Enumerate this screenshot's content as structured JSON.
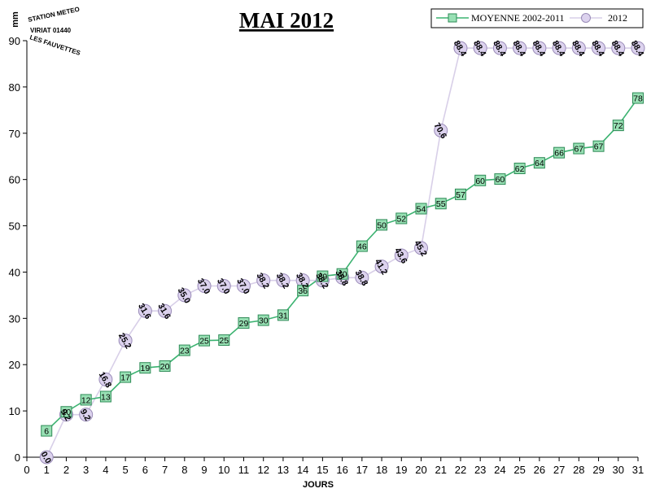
{
  "chart_data": {
    "type": "line",
    "title": "MAI 2012",
    "xlabel": "JOURS",
    "ylabel": "mm",
    "xlim": [
      0,
      31
    ],
    "ylim": [
      0,
      90
    ],
    "xticks": [
      0,
      1,
      2,
      3,
      4,
      5,
      6,
      7,
      8,
      9,
      10,
      11,
      12,
      13,
      14,
      15,
      16,
      17,
      18,
      19,
      20,
      21,
      22,
      23,
      24,
      25,
      26,
      27,
      28,
      29,
      30,
      31
    ],
    "yticks": [
      0,
      10,
      20,
      30,
      40,
      50,
      60,
      70,
      80,
      90
    ],
    "grid": false,
    "legend_position": "top-right",
    "series": [
      {
        "name": "MOYENNE 2002-2011",
        "color": "#3cb371",
        "marker": "square",
        "x": [
          1,
          2,
          3,
          4,
          5,
          6,
          7,
          8,
          9,
          10,
          11,
          12,
          13,
          14,
          15,
          16,
          17,
          18,
          19,
          20,
          21,
          22,
          23,
          24,
          25,
          26,
          27,
          28,
          29,
          30,
          31
        ],
        "values": [
          5.7,
          9.8,
          12.4,
          13.1,
          17.3,
          19.3,
          19.7,
          23.1,
          25.2,
          25.3,
          29.0,
          29.6,
          30.7,
          36.0,
          39.1,
          39.6,
          45.6,
          50.2,
          51.6,
          53.7,
          54.8,
          56.8,
          59.8,
          60.1,
          62.4,
          63.6,
          65.8,
          66.7,
          67.2,
          71.7,
          77.6
        ],
        "labels": [
          "6",
          "10",
          "12",
          "13",
          "17",
          "19",
          "20",
          "23",
          "25",
          "25",
          "29",
          "30",
          "31",
          "36",
          "39",
          "40",
          "46",
          "50",
          "52",
          "54",
          "55",
          "57",
          "60",
          "60",
          "62",
          "64",
          "66",
          "67",
          "67",
          "72",
          "78"
        ]
      },
      {
        "name": "2012",
        "color": "#d8cfe8",
        "marker": "circle",
        "x": [
          1,
          2,
          3,
          4,
          5,
          6,
          7,
          8,
          9,
          10,
          11,
          12,
          13,
          14,
          15,
          16,
          17,
          18,
          19,
          20,
          21,
          22,
          23,
          24,
          25,
          26,
          27,
          28,
          29,
          30,
          31
        ],
        "values": [
          0.0,
          9.2,
          9.2,
          16.8,
          25.2,
          31.6,
          31.6,
          35.0,
          37.0,
          37.0,
          37.0,
          38.2,
          38.2,
          38.2,
          38.2,
          38.8,
          38.8,
          41.2,
          43.6,
          45.2,
          70.6,
          88.4,
          88.4,
          88.4,
          88.4,
          88.4,
          88.4,
          88.4,
          88.4,
          88.4,
          88.4
        ],
        "labels": [
          "0.0",
          "9.2",
          "9.2",
          "16.8",
          "25.2",
          "31.6",
          "31.6",
          "35.0",
          "37.0",
          "37.0",
          "37.0",
          "38.2",
          "38.2",
          "38.2",
          "38.2",
          "38.8",
          "38.8",
          "41.2",
          "43.6",
          "45.2",
          "70.6",
          "88.4",
          "88.4",
          "88.4",
          "88.4",
          "88.4",
          "88.4",
          "88.4",
          "88.4",
          "88.4",
          "88.4"
        ]
      }
    ]
  },
  "logo": {
    "line1": "STATION METEO",
    "line2": "VIRIAT 01440",
    "line3": "LES FAUVETTES"
  }
}
